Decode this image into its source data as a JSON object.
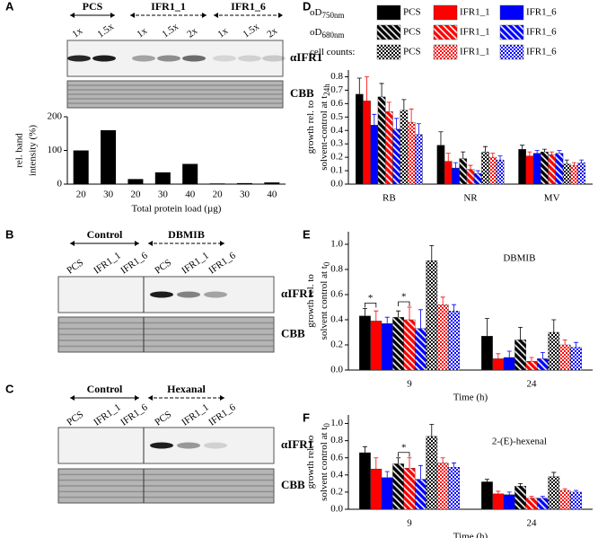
{
  "chart_data": [
    {
      "type": "bar",
      "panel": "A",
      "groups": [
        "PCS",
        "IFR1_1",
        "IFR1_6"
      ],
      "lanes": [
        "1x",
        "1.5x",
        "1x",
        "1.5x",
        "2x",
        "1x",
        "1.5x",
        "2x"
      ],
      "blot_labels": [
        "αIFR1",
        "CBB"
      ],
      "categories": [
        "20",
        "30",
        "20",
        "30",
        "40",
        "20",
        "30",
        "40"
      ],
      "values": [
        100,
        160,
        15,
        35,
        60,
        2,
        3,
        5
      ],
      "color": "#000000",
      "ylim": [
        0,
        200
      ],
      "yticks": [
        0,
        100,
        200
      ],
      "y_label": [
        "rel. band",
        "intensity (%)"
      ],
      "x_label": "Total protein load (µg)"
    },
    {
      "type": "grouped_bar",
      "panel": "D",
      "categories": [
        "RB",
        "NR",
        "MV"
      ],
      "ylim": [
        0,
        0.85
      ],
      "yticks": [
        {
          "value": 0,
          "label": "0.0"
        },
        {
          "value": 0.1,
          "label": "0.1"
        },
        {
          "value": 0.2,
          "label": "0.2"
        },
        {
          "value": 0.3,
          "label": "0.3"
        },
        {
          "value": 0.4,
          "label": "0.4"
        },
        {
          "value": 0.5,
          "label": "0.5"
        },
        {
          "value": 0.6,
          "label": "0.6"
        },
        {
          "value": 0.7,
          "label": "0.7"
        },
        {
          "value": 0.8,
          "label": "0.8"
        }
      ],
      "y_label": [
        "growth rel. to",
        "solvent-control at t"
      ],
      "y_label_sub": "24h",
      "legend_rows": [
        {
          "label": "oD",
          "sub": "750nm"
        },
        {
          "label": "oD",
          "sub": "680nm"
        },
        {
          "label": "cell counts:"
        }
      ],
      "series": [
        {
          "name": "PCS",
          "color": "#000000",
          "pattern": "solid",
          "values": [
            0.67,
            0.29,
            0.26
          ],
          "errors": [
            0.12,
            0.1,
            0.03
          ]
        },
        {
          "name": "IFR1_1",
          "color": "#ff0000",
          "pattern": "solid",
          "values": [
            0.62,
            0.17,
            0.21
          ],
          "errors": [
            0.18,
            0.06,
            0.03
          ]
        },
        {
          "name": "IFR1_6",
          "color": "#0000ff",
          "pattern": "solid",
          "values": [
            0.44,
            0.12,
            0.23
          ],
          "errors": [
            0.08,
            0.04,
            0.02
          ]
        },
        {
          "name": "PCS",
          "color": "#000000",
          "pattern": "hatch",
          "values": [
            0.65,
            0.19,
            0.24
          ],
          "errors": [
            0.1,
            0.05,
            0.02
          ]
        },
        {
          "name": "IFR1_1",
          "color": "#ff0000",
          "pattern": "hatch",
          "values": [
            0.54,
            0.11,
            0.22
          ],
          "errors": [
            0.07,
            0.03,
            0.02
          ]
        },
        {
          "name": "IFR1_6",
          "color": "#0000ff",
          "pattern": "hatch",
          "values": [
            0.41,
            0.08,
            0.23
          ],
          "errors": [
            0.08,
            0.02,
            0.02
          ]
        },
        {
          "name": "PCS",
          "color": "#000000",
          "pattern": "check",
          "values": [
            0.55,
            0.24,
            0.15
          ],
          "errors": [
            0.08,
            0.04,
            0.03
          ]
        },
        {
          "name": "IFR1_1",
          "color": "#ff0000",
          "pattern": "check",
          "values": [
            0.46,
            0.2,
            0.14
          ],
          "errors": [
            0.1,
            0.03,
            0.02
          ]
        },
        {
          "name": "IFR1_6",
          "color": "#0000ff",
          "pattern": "check",
          "values": [
            0.37,
            0.18,
            0.16
          ],
          "errors": [
            0.08,
            0.03,
            0.02
          ]
        }
      ]
    },
    {
      "type": "grouped_bar",
      "panel": "E",
      "categories": [
        "9",
        "24"
      ],
      "x_label": "Time (h)",
      "annotation": "DBMIB",
      "ylim": [
        0,
        1.1
      ],
      "yticks": [
        {
          "value": 0,
          "label": "0.0"
        },
        {
          "value": 0.2,
          "label": "0.2"
        },
        {
          "value": 0.4,
          "label": "0.4"
        },
        {
          "value": 0.6,
          "label": "0.6"
        },
        {
          "value": 0.8,
          "label": "0.8"
        },
        {
          "value": 1,
          "label": "1.0"
        }
      ],
      "y_label": [
        "growth rel. to",
        "solvent control at t"
      ],
      "y_label_sub": "0",
      "significance": [
        {
          "category": 0,
          "series": [
            0,
            1
          ],
          "label": "*"
        },
        {
          "category": 0,
          "series": [
            3,
            4
          ],
          "label": "*"
        }
      ],
      "series": [
        {
          "color": "#000000",
          "pattern": "solid",
          "values": [
            0.43,
            0.27
          ],
          "errors": [
            0.06,
            0.14
          ]
        },
        {
          "color": "#ff0000",
          "pattern": "solid",
          "values": [
            0.39,
            0.09
          ],
          "errors": [
            0.08,
            0.04
          ]
        },
        {
          "color": "#0000ff",
          "pattern": "solid",
          "values": [
            0.37,
            0.1
          ],
          "errors": [
            0.05,
            0.05
          ]
        },
        {
          "color": "#000000",
          "pattern": "hatch",
          "values": [
            0.42,
            0.24
          ],
          "errors": [
            0.05,
            0.1
          ]
        },
        {
          "color": "#ff0000",
          "pattern": "hatch",
          "values": [
            0.4,
            0.07
          ],
          "errors": [
            0.1,
            0.03
          ]
        },
        {
          "color": "#0000ff",
          "pattern": "hatch",
          "values": [
            0.33,
            0.09
          ],
          "errors": [
            0.15,
            0.05
          ]
        },
        {
          "color": "#000000",
          "pattern": "check",
          "values": [
            0.87,
            0.3
          ],
          "errors": [
            0.12,
            0.1
          ]
        },
        {
          "color": "#ff0000",
          "pattern": "check",
          "values": [
            0.52,
            0.2
          ],
          "errors": [
            0.06,
            0.04
          ]
        },
        {
          "color": "#0000ff",
          "pattern": "check",
          "values": [
            0.47,
            0.18
          ],
          "errors": [
            0.05,
            0.04
          ]
        }
      ]
    },
    {
      "type": "grouped_bar",
      "panel": "F",
      "categories": [
        "9",
        "24"
      ],
      "x_label": "Time (h)",
      "annotation": "2-(E)-hexenal",
      "ylim": [
        0,
        1.1
      ],
      "yticks": [
        {
          "value": 0,
          "label": "0.0"
        },
        {
          "value": 0.2,
          "label": "0.2"
        },
        {
          "value": 0.4,
          "label": "0.4"
        },
        {
          "value": 0.6,
          "label": "0.6"
        },
        {
          "value": 0.8,
          "label": "0.8"
        },
        {
          "value": 1,
          "label": "1.0"
        }
      ],
      "y_label": [
        "growth rel. to",
        "solvent control at t"
      ],
      "y_label_sub": "0",
      "significance": [
        {
          "category": 0,
          "series": [
            3,
            4
          ],
          "label": "*"
        }
      ],
      "series": [
        {
          "color": "#000000",
          "pattern": "solid",
          "values": [
            0.66,
            0.32
          ],
          "errors": [
            0.07,
            0.03
          ]
        },
        {
          "color": "#ff0000",
          "pattern": "solid",
          "values": [
            0.47,
            0.18
          ],
          "errors": [
            0.13,
            0.03
          ]
        },
        {
          "color": "#0000ff",
          "pattern": "solid",
          "values": [
            0.37,
            0.17
          ],
          "errors": [
            0.07,
            0.03
          ]
        },
        {
          "color": "#000000",
          "pattern": "hatch",
          "values": [
            0.53,
            0.27
          ],
          "errors": [
            0.07,
            0.03
          ]
        },
        {
          "color": "#ff0000",
          "pattern": "hatch",
          "values": [
            0.48,
            0.13
          ],
          "errors": [
            0.12,
            0.02
          ]
        },
        {
          "color": "#0000ff",
          "pattern": "hatch",
          "values": [
            0.35,
            0.13
          ],
          "errors": [
            0.16,
            0.02
          ]
        },
        {
          "color": "#000000",
          "pattern": "check",
          "values": [
            0.85,
            0.38
          ],
          "errors": [
            0.14,
            0.05
          ]
        },
        {
          "color": "#ff0000",
          "pattern": "check",
          "values": [
            0.54,
            0.22
          ],
          "errors": [
            0.06,
            0.02
          ]
        },
        {
          "color": "#0000ff",
          "pattern": "check",
          "values": [
            0.49,
            0.2
          ],
          "errors": [
            0.05,
            0.02
          ]
        }
      ]
    }
  ],
  "blots": [
    {
      "panel": "B",
      "groups": [
        "Control",
        "DBMIB"
      ],
      "lanes": [
        "PCS",
        "IFR1_1",
        "IFR1_6",
        "PCS",
        "IFR1_1",
        "IFR1_6"
      ],
      "labels": [
        "αIFR1",
        "CBB"
      ]
    },
    {
      "panel": "C",
      "groups": [
        "Control",
        "Hexanal"
      ],
      "lanes": [
        "PCS",
        "IFR1_1",
        "IFR1_6",
        "PCS",
        "IFR1_1",
        "IFR1_6"
      ],
      "labels": [
        "αIFR1",
        "CBB"
      ]
    }
  ]
}
